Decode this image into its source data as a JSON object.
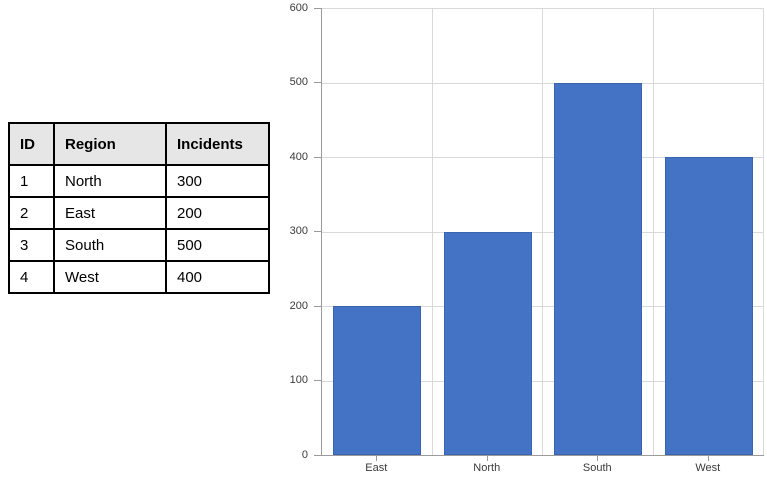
{
  "table": {
    "headers": [
      "ID",
      "Region",
      "Incidents"
    ],
    "rows": [
      [
        "1",
        "North",
        "300"
      ],
      [
        "2",
        "East",
        "200"
      ],
      [
        "3",
        "South",
        "500"
      ],
      [
        "4",
        "West",
        "400"
      ]
    ]
  },
  "chart_data": {
    "type": "bar",
    "categories": [
      "East",
      "North",
      "South",
      "West"
    ],
    "values": [
      200,
      300,
      500,
      400
    ],
    "title": "",
    "xlabel": "",
    "ylabel": "",
    "ylim": [
      0,
      600
    ],
    "yticks": [
      0,
      100,
      200,
      300,
      400,
      500,
      600
    ],
    "grid": true,
    "legend": false,
    "bar_color": "#4472C4",
    "bar_border_color": "#3A64AE",
    "gridline_color": "#D9D9D9",
    "axis_color": "#9B9B9B",
    "tick_label_color": "#3A3A3A"
  },
  "colors": {
    "background": "#FFFFFF",
    "table_header_bg": "#E7E6E6",
    "table_border": "#000000"
  }
}
